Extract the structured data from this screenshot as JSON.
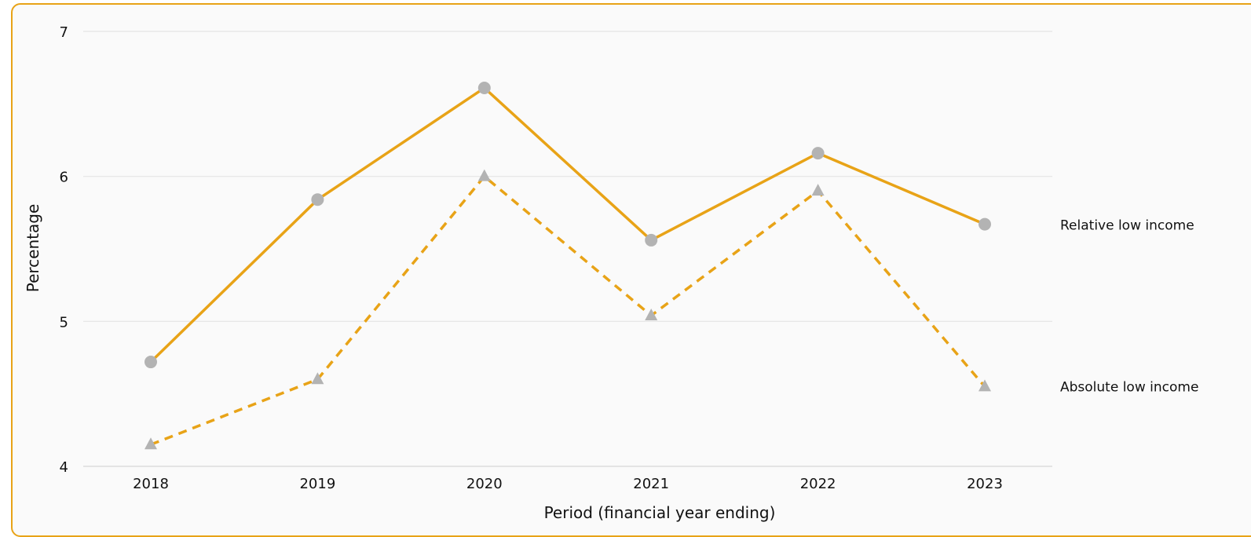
{
  "chart_data": {
    "type": "line",
    "title": "",
    "xlabel": "Period (financial year ending)",
    "ylabel": "Percentage",
    "categories": [
      "2018",
      "2019",
      "2020",
      "2021",
      "2022",
      "2023"
    ],
    "ylim": [
      4,
      7
    ],
    "yticks": [
      "4",
      "5",
      "6",
      "7"
    ],
    "grid": "horizontal",
    "legend": "labels at right end of lines",
    "series": [
      {
        "name": "Relative low income",
        "values": [
          4.72,
          5.84,
          6.61,
          5.56,
          6.16,
          5.67
        ],
        "line_style": "solid",
        "marker": "circle",
        "line_color": "#e8a317",
        "marker_color": "#b3b3b3"
      },
      {
        "name": "Absolute low income",
        "values": [
          4.15,
          4.6,
          6.0,
          5.04,
          5.9,
          4.55
        ],
        "line_style": "dashed",
        "marker": "triangle",
        "line_color": "#e8a317",
        "marker_color": "#b3b3b3"
      }
    ]
  }
}
